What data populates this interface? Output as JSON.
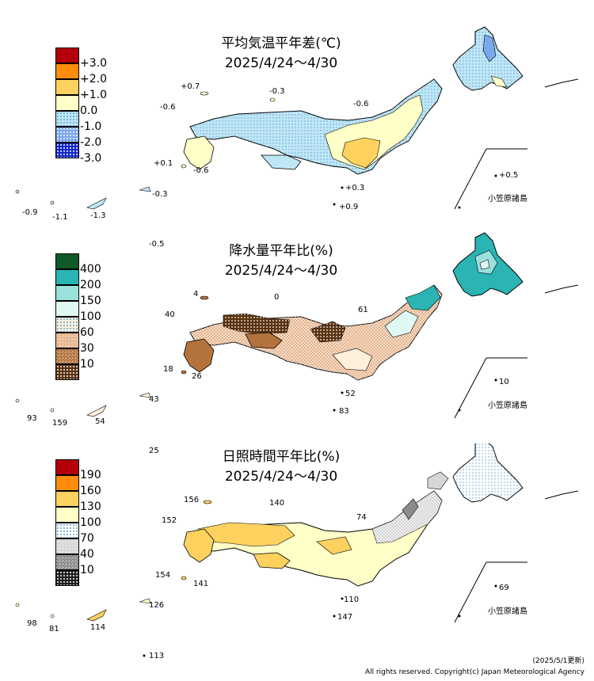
{
  "panels": [
    {
      "title": "平均気温平年差(℃)",
      "period": "2025/4/24～4/30",
      "legend": [
        {
          "label": "+3.0",
          "color": "#b4000a",
          "pattern": "solid"
        },
        {
          "label": "+2.0",
          "color": "#ff8c0a",
          "pattern": "solid"
        },
        {
          "label": "+1.0",
          "color": "#ffd25f",
          "pattern": "solid"
        },
        {
          "label": "0.0",
          "color": "#ffffc8",
          "pattern": "solid"
        },
        {
          "label": "-1.0",
          "color": "#bfe6f5",
          "pattern": "light-dots"
        },
        {
          "label": "-2.0",
          "color": "#7aa8ec",
          "pattern": "dots"
        },
        {
          "label": "-3.0",
          "color": "#1428c8",
          "pattern": "dots"
        }
      ],
      "values": [
        "+0.7",
        "-0.3",
        "-0.6",
        "-0.6",
        "+0.1",
        "-0.6",
        "+0.3",
        "+0.9",
        "-0.3",
        "-0.9",
        "-1.1",
        "-1.3",
        "+0.5",
        "-0.5"
      ],
      "inset_label": "小笠原諸島"
    },
    {
      "title": "降水量平年比(%)",
      "period": "2025/4/24～4/30",
      "legend": [
        {
          "label": "400",
          "color": "#0f5a28",
          "pattern": "solid"
        },
        {
          "label": "200",
          "color": "#2ab4b4",
          "pattern": "solid"
        },
        {
          "label": "150",
          "color": "#9ae0dc",
          "pattern": "solid"
        },
        {
          "label": "100",
          "color": "#e0f8f4",
          "pattern": "solid"
        },
        {
          "label": "60",
          "color": "#fff0dc",
          "pattern": "light-dots"
        },
        {
          "label": "30",
          "color": "#e6b48c",
          "pattern": "checker"
        },
        {
          "label": "10",
          "color": "#b4733c",
          "pattern": "checker"
        },
        {
          "label": "",
          "color": "#5a3210",
          "pattern": "dots"
        }
      ],
      "values": [
        "4",
        "0",
        "40",
        "61",
        "18",
        "26",
        "52",
        "83",
        "43",
        "93",
        "159",
        "54",
        "10",
        "25"
      ],
      "inset_label": "小笠原諸島"
    },
    {
      "title": "日照時間平年比(%)",
      "period": "2025/4/24～4/30",
      "legend": [
        {
          "label": "190",
          "color": "#b4000a",
          "pattern": "solid"
        },
        {
          "label": "160",
          "color": "#ff8c0a",
          "pattern": "solid"
        },
        {
          "label": "130",
          "color": "#ffd25f",
          "pattern": "solid"
        },
        {
          "label": "100",
          "color": "#ffffc8",
          "pattern": "solid"
        },
        {
          "label": "70",
          "color": "#ffffff",
          "pattern": "light-dots"
        },
        {
          "label": "40",
          "color": "#d6d6d6",
          "pattern": "checker"
        },
        {
          "label": "10",
          "color": "#8c8c8c",
          "pattern": "checker"
        },
        {
          "label": "",
          "color": "#1e1e1e",
          "pattern": "dots"
        }
      ],
      "values": [
        "156",
        "140",
        "152",
        "74",
        "154",
        "141",
        "110",
        "147",
        "126",
        "98",
        "81",
        "114",
        "69",
        "113"
      ],
      "inset_label": "小笠原諸島"
    }
  ],
  "footer": {
    "updated": "(2025/5/1更新)",
    "copyright": "All rights reserved. Copyright(c) Japan Meteorological Agency"
  }
}
